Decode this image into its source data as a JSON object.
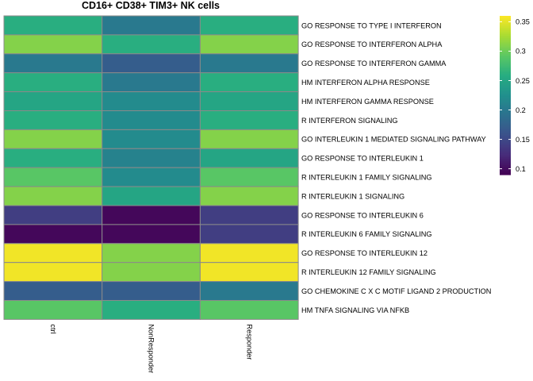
{
  "chart_data": {
    "type": "heatmap",
    "title": "CD16+ CD38+ TIM3+ NK cells",
    "columns": [
      "ctrl",
      "NonResponder",
      "Responder"
    ],
    "rows": [
      "GO RESPONSE TO TYPE I INTERFERON",
      "GO RESPONSE TO INTERFERON ALPHA",
      "GO RESPONSE TO INTERFERON GAMMA",
      "HM INTERFERON ALPHA RESPONSE",
      "HM INTERFERON GAMMA RESPONSE",
      "R INTERFERON SIGNALING",
      "GO INTERLEUKIN 1 MEDIATED SIGNALING PATHWAY",
      "GO RESPONSE TO INTERLEUKIN 1",
      "R INTERLEUKIN 1 FAMILY SIGNALING",
      "R INTERLEUKIN 1 SIGNALING",
      "GO RESPONSE TO INTERLEUKIN 6",
      "R INTERLEUKIN 6 FAMILY SIGNALING",
      "GO RESPONSE TO INTERLEUKIN 12",
      "R INTERLEUKIN 12 FAMILY SIGNALING",
      "GO CHEMOKINE C X C MOTIF LIGAND 2 PRODUCTION",
      "HM TNFA SIGNALING VIA NFKB"
    ],
    "values": [
      [
        0.26,
        0.2,
        0.26
      ],
      [
        0.31,
        0.26,
        0.31
      ],
      [
        0.2,
        0.17,
        0.2
      ],
      [
        0.26,
        0.2,
        0.26
      ],
      [
        0.25,
        0.22,
        0.25
      ],
      [
        0.26,
        0.22,
        0.26
      ],
      [
        0.31,
        0.22,
        0.31
      ],
      [
        0.26,
        0.21,
        0.25
      ],
      [
        0.29,
        0.22,
        0.29
      ],
      [
        0.31,
        0.25,
        0.31
      ],
      [
        0.14,
        0.095,
        0.14
      ],
      [
        0.095,
        0.095,
        0.14
      ],
      [
        0.355,
        0.31,
        0.355
      ],
      [
        0.355,
        0.31,
        0.355
      ],
      [
        0.17,
        0.17,
        0.2
      ],
      [
        0.29,
        0.26,
        0.29
      ]
    ],
    "colorbar": {
      "ticks": [
        0.1,
        0.15,
        0.2,
        0.25,
        0.3,
        0.35
      ],
      "range": [
        0.09,
        0.36
      ],
      "colormap": "viridis"
    }
  }
}
